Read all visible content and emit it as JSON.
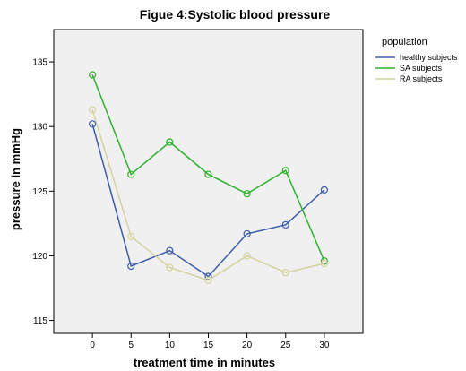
{
  "chart_data": {
    "type": "line",
    "title": "Figue 4:Systolic blood pressure",
    "xlabel": "treatment time in minutes",
    "ylabel": "pressure in mmHg",
    "x": [
      0,
      5,
      10,
      15,
      20,
      25,
      30
    ],
    "xlim": [
      -5,
      35
    ],
    "ylim": [
      114,
      137.5
    ],
    "yticks": [
      115,
      120,
      125,
      130,
      135
    ],
    "xticks": [
      0,
      5,
      10,
      15,
      20,
      25,
      30
    ],
    "legend_title": "population",
    "legend_position": "right",
    "grid": false,
    "background": "#f0f0f0",
    "series": [
      {
        "name": "healthy subjects",
        "color": "#3c5bab",
        "values": [
          130.2,
          119.2,
          120.4,
          118.4,
          121.7,
          122.4,
          125.1
        ]
      },
      {
        "name": "SA subjects",
        "color": "#2db12e",
        "values": [
          134.0,
          126.3,
          128.8,
          126.3,
          124.8,
          126.6,
          119.6
        ]
      },
      {
        "name": "RA subjects",
        "color": "#d4d29e",
        "values": [
          131.3,
          121.5,
          119.1,
          118.1,
          120.0,
          118.7,
          119.4
        ]
      }
    ]
  }
}
